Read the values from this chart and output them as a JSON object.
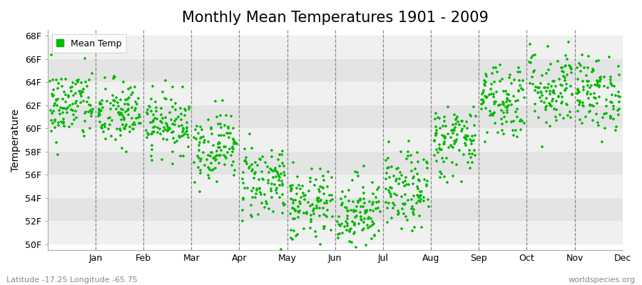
{
  "title": "Monthly Mean Temperatures 1901 - 2009",
  "ylabel": "Temperature",
  "xlabel_labels": [
    "Jan",
    "Feb",
    "Mar",
    "Apr",
    "May",
    "Jun",
    "Jul",
    "Aug",
    "Sep",
    "Oct",
    "Nov",
    "Dec"
  ],
  "ytick_labels": [
    "50F",
    "52F",
    "54F",
    "56F",
    "58F",
    "60F",
    "62F",
    "64F",
    "66F",
    "68F"
  ],
  "ytick_values": [
    50,
    52,
    54,
    56,
    58,
    60,
    62,
    64,
    66,
    68
  ],
  "ylim": [
    49.5,
    68.5
  ],
  "dot_color": "#00bb00",
  "bg_color": "#ffffff",
  "band_colors": [
    "#f0f0f0",
    "#e4e4e4"
  ],
  "footer_left": "Latitude -17.25 Longitude -65.75",
  "footer_right": "worldspecies.org",
  "legend_label": "Mean Temp",
  "title_fontsize": 15,
  "label_fontsize": 10,
  "tick_fontsize": 9,
  "n_years": 109,
  "month_means_F": [
    62.0,
    61.2,
    60.5,
    58.5,
    55.5,
    53.2,
    52.8,
    54.5,
    59.0,
    62.5,
    63.5,
    63.0
  ],
  "month_stds_F": [
    1.6,
    1.5,
    1.3,
    1.5,
    1.7,
    1.6,
    1.6,
    1.7,
    1.6,
    1.7,
    1.8,
    1.6
  ],
  "random_seed": 42,
  "xlim": [
    0,
    12
  ],
  "x_month_boundaries": [
    1,
    2,
    3,
    4,
    5,
    6,
    7,
    8,
    9,
    10,
    11
  ]
}
